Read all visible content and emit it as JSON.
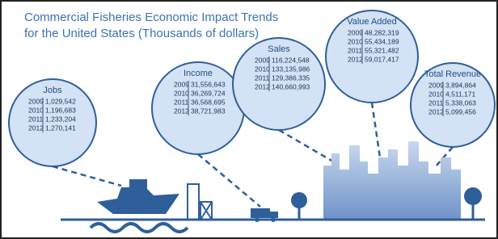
{
  "title": [
    "Commercial Fisheries Economic Impact Trends",
    "for the United States (Thousands of dollars)"
  ],
  "panels": [
    {
      "label": "Jobs",
      "rows": [
        [
          "2009",
          "1,029,542"
        ],
        [
          "2010",
          "1,196,683"
        ],
        [
          "2011",
          "1,233,204"
        ],
        [
          "2012",
          "1,270,141"
        ]
      ]
    },
    {
      "label": "Income",
      "rows": [
        [
          "2009",
          "31,556,643"
        ],
        [
          "2010",
          "36,269,724"
        ],
        [
          "2011",
          "36,568,695"
        ],
        [
          "2012",
          "38,721,983"
        ]
      ]
    },
    {
      "label": "Sales",
      "rows": [
        [
          "2009",
          "116,224,548"
        ],
        [
          "2010",
          "133,135,986"
        ],
        [
          "2011",
          "129,386,335"
        ],
        [
          "2012",
          "140,660,993"
        ]
      ]
    },
    {
      "label": "Value Added",
      "rows": [
        [
          "2009",
          "48,282,319"
        ],
        [
          "2010",
          "55,434,189"
        ],
        [
          "2011",
          "55,321,482"
        ],
        [
          "2012",
          "59,017,417"
        ]
      ]
    },
    {
      "label": "Total Revenue",
      "rows": [
        [
          "2009",
          "3,894,864"
        ],
        [
          "2010",
          "4,511,171"
        ],
        [
          "2011",
          "5,338,063"
        ],
        [
          "2012",
          "5,099,456"
        ]
      ]
    }
  ]
}
